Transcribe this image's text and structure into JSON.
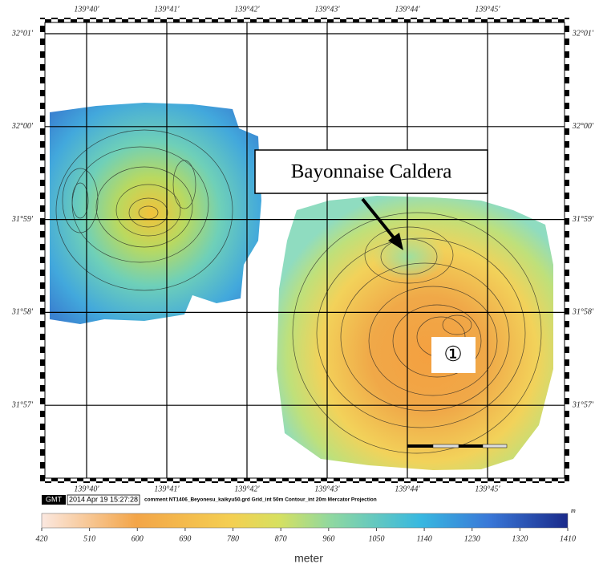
{
  "map": {
    "longitude_labels": [
      "139°40'",
      "139°41'",
      "139°42'",
      "139°43'",
      "139°44'",
      "139°45'"
    ],
    "latitude_labels": [
      "32°01'",
      "32°00'",
      "31°59'",
      "31°58'",
      "31°57'"
    ],
    "annotation": "Bayonnaise Caldera",
    "marker": "①",
    "footer": {
      "logo": "GMT",
      "timestamp": "2014 Apr 19 15:27:28",
      "comment": "comment NT1406_Beyonesu_kaikyu50.grd Grid_int 50m Contour_int 20m Mercator Projection"
    },
    "colorbar": {
      "ticks": [
        420,
        510,
        600,
        690,
        780,
        870,
        960,
        1050,
        1140,
        1230,
        1320,
        1410
      ],
      "unit": "m",
      "label": "meter"
    }
  }
}
